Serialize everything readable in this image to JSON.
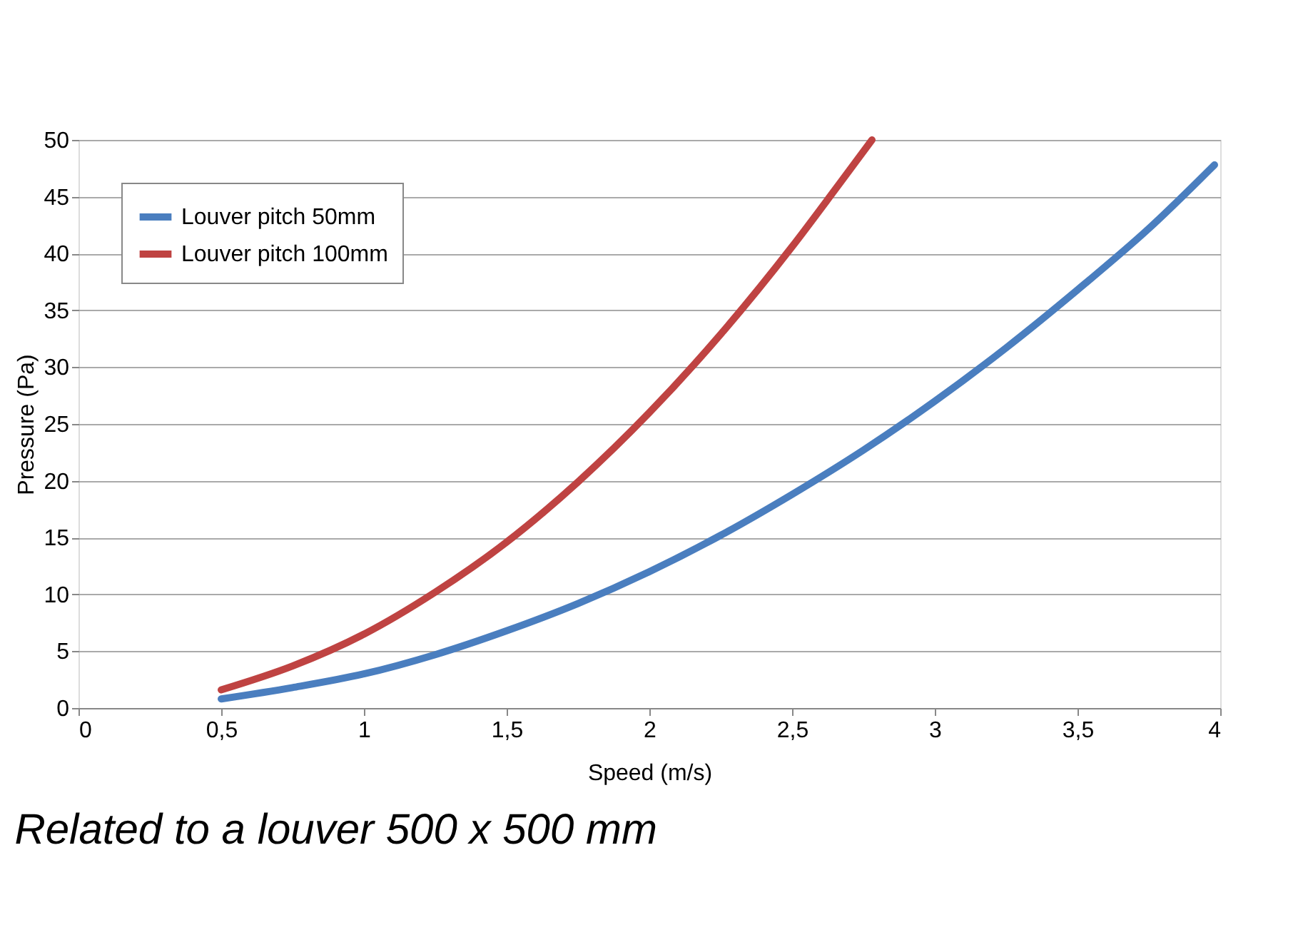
{
  "chart_data": {
    "type": "line",
    "xlabel": "Speed (m/s)",
    "ylabel": "Pressure (Pa)",
    "xlim": [
      0,
      4
    ],
    "ylim": [
      0,
      50
    ],
    "xticks": [
      0,
      {
        "value": 0.5,
        "label": "0,5"
      },
      1,
      {
        "value": 1.5,
        "label": "1,5"
      },
      2,
      {
        "value": 2.5,
        "label": "2,5"
      },
      3,
      {
        "value": 3.5,
        "label": "3,5"
      },
      4
    ],
    "yticks": [
      0,
      5,
      10,
      15,
      20,
      25,
      30,
      35,
      40,
      45,
      50
    ],
    "grid": "y",
    "legend": "top left",
    "line_style": "solid",
    "marker": "none",
    "annotations": [
      "Related to a louver 500 x 500 mm"
    ],
    "series": [
      {
        "name": "Louver pitch 50mm",
        "color": "#4a7ebf",
        "x": [
          0.5,
          0.75,
          1,
          1.25,
          1.5,
          1.75,
          2,
          2.25,
          2.5,
          2.75,
          3,
          3.25,
          3.5,
          3.75,
          3.98
        ],
        "values": [
          0.8,
          1.8,
          3,
          4.7,
          6.8,
          9.2,
          12,
          15.2,
          18.8,
          22.7,
          27,
          31.7,
          36.8,
          42.2,
          47.8
        ]
      },
      {
        "name": "Louver pitch 100mm",
        "color": "#bf4342",
        "x": [
          0.5,
          0.75,
          1,
          1.25,
          1.5,
          1.75,
          2,
          2.25,
          2.5,
          2.65,
          2.78
        ],
        "values": [
          1.6,
          3.7,
          6.5,
          10.2,
          14.6,
          19.9,
          26,
          32.9,
          40.6,
          45.6,
          50
        ]
      }
    ]
  }
}
